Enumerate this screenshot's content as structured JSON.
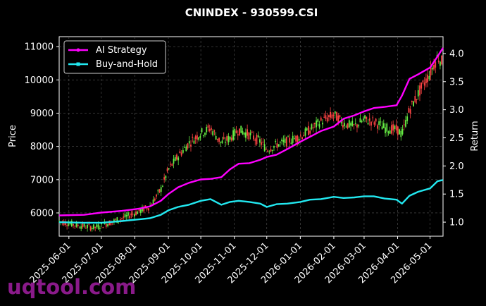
{
  "watermark": "uqtool.com",
  "colors": {
    "background": "#000000",
    "grid": "#555555",
    "ai_strategy": "#ff00ff",
    "buy_and_hold": "#22e8f0",
    "candle_up": "#66ee44",
    "candle_down": "#ff4444"
  },
  "chart_data": {
    "type": "line",
    "title": "CNINDEX - 930599.CSI",
    "xlabel": "",
    "ylabel_left": "Price",
    "ylabel_right": "Return",
    "grid": true,
    "legend_position": "top-left",
    "x_ticks": [
      "2025-06-01",
      "2025-07-01",
      "2025-08-01",
      "2025-09-01",
      "2025-10-01",
      "2025-11-01",
      "2025-12-01",
      "2026-01-01",
      "2026-02-01",
      "2026-03-01",
      "2026-04-01",
      "2026-05-01"
    ],
    "x_range": [
      "2025-05-23",
      "2026-05-13"
    ],
    "ylim_left": [
      5300,
      11300
    ],
    "ylim_right": [
      0.75,
      4.3
    ],
    "y_ticks_left": [
      6000,
      7000,
      8000,
      9000,
      10000,
      11000
    ],
    "y_ticks_right": [
      1.0,
      1.5,
      2.0,
      2.5,
      3.0,
      3.5,
      4.0
    ],
    "y_tick_labels_left": [
      "6000",
      "7000",
      "8000",
      "9000",
      "10000",
      "11000"
    ],
    "y_tick_labels_right": [
      "1.0",
      "1.5",
      "2.0",
      "2.5",
      "3.0",
      "3.5",
      "4.0"
    ],
    "price_path": [
      [
        "2025-05-23",
        5750
      ],
      [
        "2025-06-10",
        5620
      ],
      [
        "2025-06-25",
        5560
      ],
      [
        "2025-07-10",
        5720
      ],
      [
        "2025-07-25",
        5900
      ],
      [
        "2025-08-05",
        6050
      ],
      [
        "2025-08-15",
        6200
      ],
      [
        "2025-08-25",
        6700
      ],
      [
        "2025-09-01",
        7300
      ],
      [
        "2025-09-10",
        7700
      ],
      [
        "2025-09-20",
        8100
      ],
      [
        "2025-10-01",
        8400
      ],
      [
        "2025-10-10",
        8550
      ],
      [
        "2025-10-20",
        8100
      ],
      [
        "2025-10-28",
        8250
      ],
      [
        "2025-11-05",
        8500
      ],
      [
        "2025-11-15",
        8350
      ],
      [
        "2025-11-25",
        8150
      ],
      [
        "2025-12-01",
        7900
      ],
      [
        "2025-12-10",
        8050
      ],
      [
        "2025-12-20",
        8150
      ],
      [
        "2026-01-01",
        8300
      ],
      [
        "2026-01-10",
        8500
      ],
      [
        "2026-01-20",
        8750
      ],
      [
        "2026-02-01",
        8950
      ],
      [
        "2026-02-10",
        8700
      ],
      [
        "2026-02-20",
        8600
      ],
      [
        "2026-03-01",
        8800
      ],
      [
        "2026-03-10",
        8750
      ],
      [
        "2026-03-20",
        8550
      ],
      [
        "2026-04-01",
        8500
      ],
      [
        "2026-04-05",
        8350
      ],
      [
        "2026-04-12",
        9100
      ],
      [
        "2026-04-22",
        9700
      ],
      [
        "2026-05-01",
        10200
      ],
      [
        "2026-05-08",
        10700
      ],
      [
        "2026-05-13",
        10500
      ]
    ],
    "series": [
      {
        "name": "AI Strategy",
        "axis": "right",
        "points": [
          [
            "2025-05-23",
            1.12
          ],
          [
            "2025-06-15",
            1.13
          ],
          [
            "2025-07-01",
            1.17
          ],
          [
            "2025-07-20",
            1.2
          ],
          [
            "2025-08-05",
            1.24
          ],
          [
            "2025-08-15",
            1.28
          ],
          [
            "2025-08-25",
            1.38
          ],
          [
            "2025-09-01",
            1.5
          ],
          [
            "2025-09-10",
            1.62
          ],
          [
            "2025-09-20",
            1.7
          ],
          [
            "2025-10-01",
            1.76
          ],
          [
            "2025-10-10",
            1.77
          ],
          [
            "2025-10-20",
            1.8
          ],
          [
            "2025-10-28",
            1.94
          ],
          [
            "2025-11-05",
            2.04
          ],
          [
            "2025-11-15",
            2.05
          ],
          [
            "2025-11-25",
            2.11
          ],
          [
            "2025-12-01",
            2.16
          ],
          [
            "2025-12-10",
            2.2
          ],
          [
            "2025-12-20",
            2.3
          ],
          [
            "2026-01-01",
            2.43
          ],
          [
            "2026-01-10",
            2.52
          ],
          [
            "2026-01-20",
            2.62
          ],
          [
            "2026-02-01",
            2.7
          ],
          [
            "2026-02-10",
            2.84
          ],
          [
            "2026-02-20",
            2.9
          ],
          [
            "2026-03-01",
            2.97
          ],
          [
            "2026-03-10",
            3.03
          ],
          [
            "2026-03-20",
            3.05
          ],
          [
            "2026-03-31",
            3.08
          ],
          [
            "2026-04-05",
            3.25
          ],
          [
            "2026-04-12",
            3.55
          ],
          [
            "2026-04-20",
            3.63
          ],
          [
            "2026-05-01",
            3.75
          ],
          [
            "2026-05-08",
            3.95
          ],
          [
            "2026-05-13",
            4.1
          ]
        ]
      },
      {
        "name": "Buy-and-Hold",
        "axis": "right",
        "points": [
          [
            "2025-05-23",
            1.0
          ],
          [
            "2025-06-15",
            0.99
          ],
          [
            "2025-07-01",
            0.99
          ],
          [
            "2025-07-20",
            1.02
          ],
          [
            "2025-08-05",
            1.05
          ],
          [
            "2025-08-15",
            1.07
          ],
          [
            "2025-08-25",
            1.13
          ],
          [
            "2025-09-01",
            1.21
          ],
          [
            "2025-09-10",
            1.27
          ],
          [
            "2025-09-20",
            1.31
          ],
          [
            "2025-10-01",
            1.38
          ],
          [
            "2025-10-10",
            1.41
          ],
          [
            "2025-10-20",
            1.31
          ],
          [
            "2025-10-28",
            1.36
          ],
          [
            "2025-11-05",
            1.38
          ],
          [
            "2025-11-15",
            1.36
          ],
          [
            "2025-11-25",
            1.33
          ],
          [
            "2025-12-01",
            1.27
          ],
          [
            "2025-12-10",
            1.32
          ],
          [
            "2025-12-20",
            1.33
          ],
          [
            "2026-01-01",
            1.36
          ],
          [
            "2026-01-10",
            1.4
          ],
          [
            "2026-01-20",
            1.41
          ],
          [
            "2026-02-01",
            1.45
          ],
          [
            "2026-02-10",
            1.43
          ],
          [
            "2026-02-20",
            1.44
          ],
          [
            "2026-03-01",
            1.46
          ],
          [
            "2026-03-10",
            1.46
          ],
          [
            "2026-03-20",
            1.42
          ],
          [
            "2026-03-31",
            1.4
          ],
          [
            "2026-04-05",
            1.33
          ],
          [
            "2026-04-12",
            1.47
          ],
          [
            "2026-04-20",
            1.54
          ],
          [
            "2026-05-01",
            1.6
          ],
          [
            "2026-05-08",
            1.73
          ],
          [
            "2026-05-13",
            1.75
          ]
        ]
      }
    ]
  }
}
